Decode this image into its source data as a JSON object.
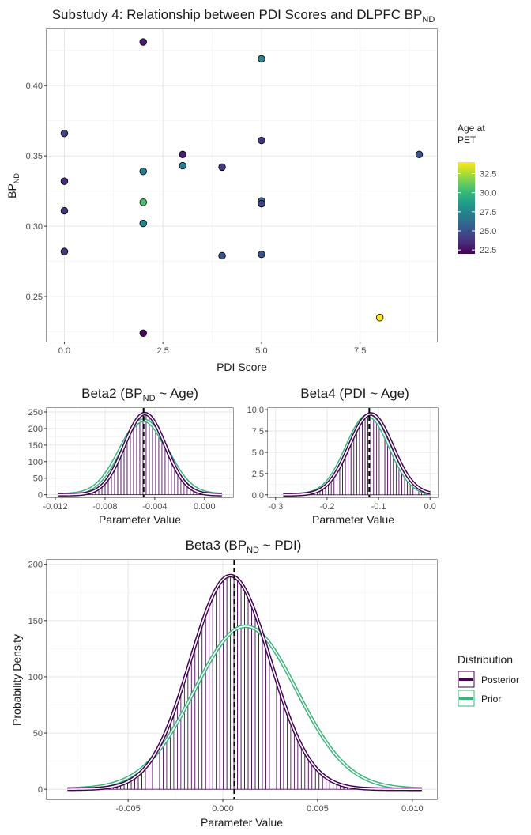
{
  "chart_data": [
    {
      "id": "scatter",
      "type": "scatter",
      "title": "Substudy 4: Relationship between PDI Scores and DLPFC BP",
      "title_sub": "ND",
      "xlabel": "PDI Score",
      "ylabel": "BP",
      "ylabel_sub": "ND",
      "xlim": [
        -0.45,
        9.45
      ],
      "ylim": [
        0.218,
        0.44
      ],
      "xticks": [
        0,
        2.5,
        5,
        7.5
      ],
      "xtick_labels": [
        "0.0",
        "2.5",
        "5.0",
        "7.5"
      ],
      "yticks": [
        0.25,
        0.3,
        0.35,
        0.4
      ],
      "ytick_labels": [
        "0.25",
        "0.30",
        "0.35",
        "0.40"
      ],
      "grid": true,
      "color_legend": {
        "title_line1": "Age at",
        "title_line2": "PET",
        "min": 22,
        "max": 34,
        "ticks": [
          22.5,
          25.0,
          27.5,
          30.0,
          32.5
        ],
        "tick_labels": [
          "22.5",
          "25.0",
          "27.5",
          "30.0",
          "32.5"
        ],
        "colors": [
          "#440154",
          "#482878",
          "#3e4a89",
          "#31688e",
          "#26828e",
          "#1f9e89",
          "#35b779",
          "#6ece58",
          "#b5de2b",
          "#fde725"
        ]
      },
      "points": [
        {
          "x": 0,
          "y": 0.366,
          "age": 24.5
        },
        {
          "x": 0,
          "y": 0.332,
          "age": 23.5
        },
        {
          "x": 0,
          "y": 0.311,
          "age": 24.0
        },
        {
          "x": 0,
          "y": 0.282,
          "age": 24.0
        },
        {
          "x": 2,
          "y": 0.431,
          "age": 23.0
        },
        {
          "x": 2,
          "y": 0.339,
          "age": 27.0
        },
        {
          "x": 2,
          "y": 0.317,
          "age": 30.5
        },
        {
          "x": 2,
          "y": 0.302,
          "age": 27.5
        },
        {
          "x": 2,
          "y": 0.224,
          "age": 22.3
        },
        {
          "x": 3,
          "y": 0.351,
          "age": 23.0
        },
        {
          "x": 3,
          "y": 0.343,
          "age": 27.0
        },
        {
          "x": 4,
          "y": 0.342,
          "age": 24.0
        },
        {
          "x": 4,
          "y": 0.279,
          "age": 25.0
        },
        {
          "x": 5,
          "y": 0.419,
          "age": 27.5
        },
        {
          "x": 5,
          "y": 0.361,
          "age": 24.0
        },
        {
          "x": 5,
          "y": 0.318,
          "age": 26.0
        },
        {
          "x": 5,
          "y": 0.316,
          "age": 24.5
        },
        {
          "x": 5,
          "y": 0.28,
          "age": 25.0
        },
        {
          "x": 8,
          "y": 0.235,
          "age": 34.0
        },
        {
          "x": 9,
          "y": 0.351,
          "age": 25.0
        }
      ]
    },
    {
      "id": "beta2",
      "type": "histogram-density",
      "title": "Beta2 (BP",
      "title_sub": "ND",
      "title_end": " ~ Age)",
      "xlabel": "Parameter Value",
      "xlim": [
        -0.0127,
        0.0023
      ],
      "ylim": [
        -8,
        262
      ],
      "xticks": [
        -0.012,
        -0.008,
        -0.004,
        0.0
      ],
      "xtick_labels": [
        "-0.012",
        "-0.008",
        "-0.004",
        "0.000"
      ],
      "yticks": [
        0,
        50,
        100,
        150,
        200,
        250
      ],
      "ytick_labels": [
        "0",
        "50",
        "100",
        "150",
        "200",
        "250"
      ],
      "grid": true,
      "posterior": {
        "mean": -0.0048,
        "sd": 0.00165,
        "peak": 245
      },
      "prior": {
        "mean": -0.0049,
        "sd": 0.0019,
        "peak": 225
      },
      "hist_range": [
        -0.0118,
        0.0014
      ],
      "posterior_mean_line": -0.0049
    },
    {
      "id": "beta4",
      "type": "histogram-density",
      "title": "Beta4 (PDI ~ Age)",
      "xlabel": "Parameter Value",
      "xlim": [
        -0.315,
        0.015
      ],
      "ylim": [
        -0.3,
        10.2
      ],
      "xticks": [
        -0.3,
        -0.2,
        -0.1,
        0.0
      ],
      "xtick_labels": [
        "-0.3",
        "-0.2",
        "-0.1",
        "0.0"
      ],
      "yticks": [
        0.0,
        2.5,
        5.0,
        7.5,
        10.0
      ],
      "ytick_labels": [
        "0.0",
        "2.5",
        "5.0",
        "7.5",
        "10.0"
      ],
      "grid": true,
      "posterior": {
        "mean": -0.115,
        "sd": 0.042,
        "peak": 9.5
      },
      "prior": {
        "mean": -0.12,
        "sd": 0.042,
        "peak": 9.3
      },
      "hist_range": [
        -0.285,
        0.0
      ],
      "posterior_mean_line": -0.118
    },
    {
      "id": "beta3",
      "type": "histogram-density",
      "title": "Beta3 (BP",
      "title_sub": "ND",
      "title_end": " ~ PDI)",
      "xlabel": "Parameter Value",
      "ylabel": "Probability Density",
      "xlim": [
        -0.0093,
        0.0113
      ],
      "ylim": [
        -9,
        204
      ],
      "xticks": [
        -0.005,
        0.0,
        0.005,
        0.01
      ],
      "xtick_labels": [
        "-0.005",
        "0.000",
        "0.005",
        "0.010"
      ],
      "yticks": [
        0,
        50,
        100,
        150,
        200
      ],
      "ytick_labels": [
        "0",
        "50",
        "100",
        "150",
        "200"
      ],
      "grid": true,
      "posterior": {
        "mean": 0.0004,
        "sd": 0.0021,
        "peak": 190
      },
      "prior": {
        "mean": 0.0012,
        "sd": 0.0027,
        "peak": 145
      },
      "hist_range": [
        -0.0082,
        0.0105
      ],
      "posterior_mean_line": 0.0006
    }
  ],
  "legend": {
    "title": "Distribution",
    "items": [
      {
        "label": "Posterior",
        "color": "#440154"
      },
      {
        "label": "Prior",
        "color": "#35b779"
      }
    ]
  }
}
